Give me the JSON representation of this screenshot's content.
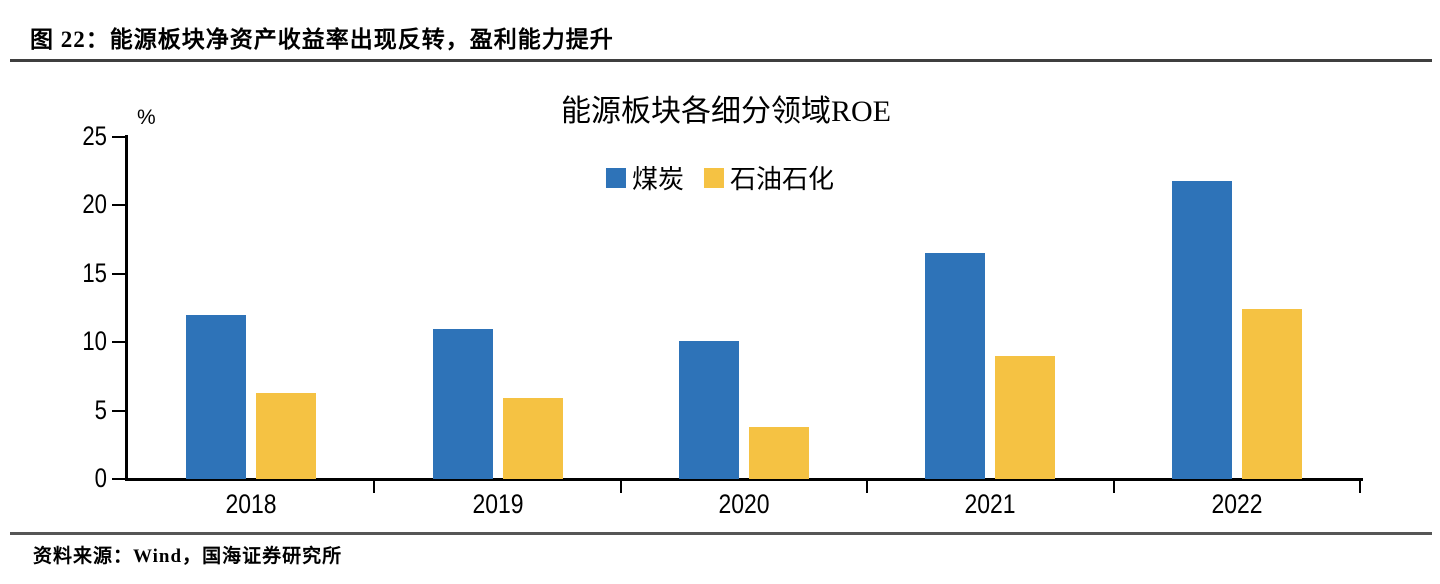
{
  "figure_caption": "图 22：能源板块净资产收益率出现反转，盈利能力提升",
  "source_note": "资料来源：Wind，国海证券研究所",
  "chart_data": {
    "type": "bar",
    "title": "能源板块各细分领域ROE",
    "y_unit_label": "%",
    "categories": [
      "2018",
      "2019",
      "2020",
      "2021",
      "2022"
    ],
    "series": [
      {
        "name": "煤炭",
        "color": "#2E73B8",
        "values": [
          12.0,
          11.0,
          10.1,
          16.5,
          21.8
        ]
      },
      {
        "name": "石油石化",
        "color": "#F5C243",
        "values": [
          6.3,
          5.9,
          3.8,
          9.0,
          12.4
        ]
      }
    ],
    "ylim": [
      0,
      25
    ],
    "yticks": [
      0,
      5,
      10,
      15,
      20,
      25
    ],
    "legend_position": "top-center",
    "grid": false
  }
}
